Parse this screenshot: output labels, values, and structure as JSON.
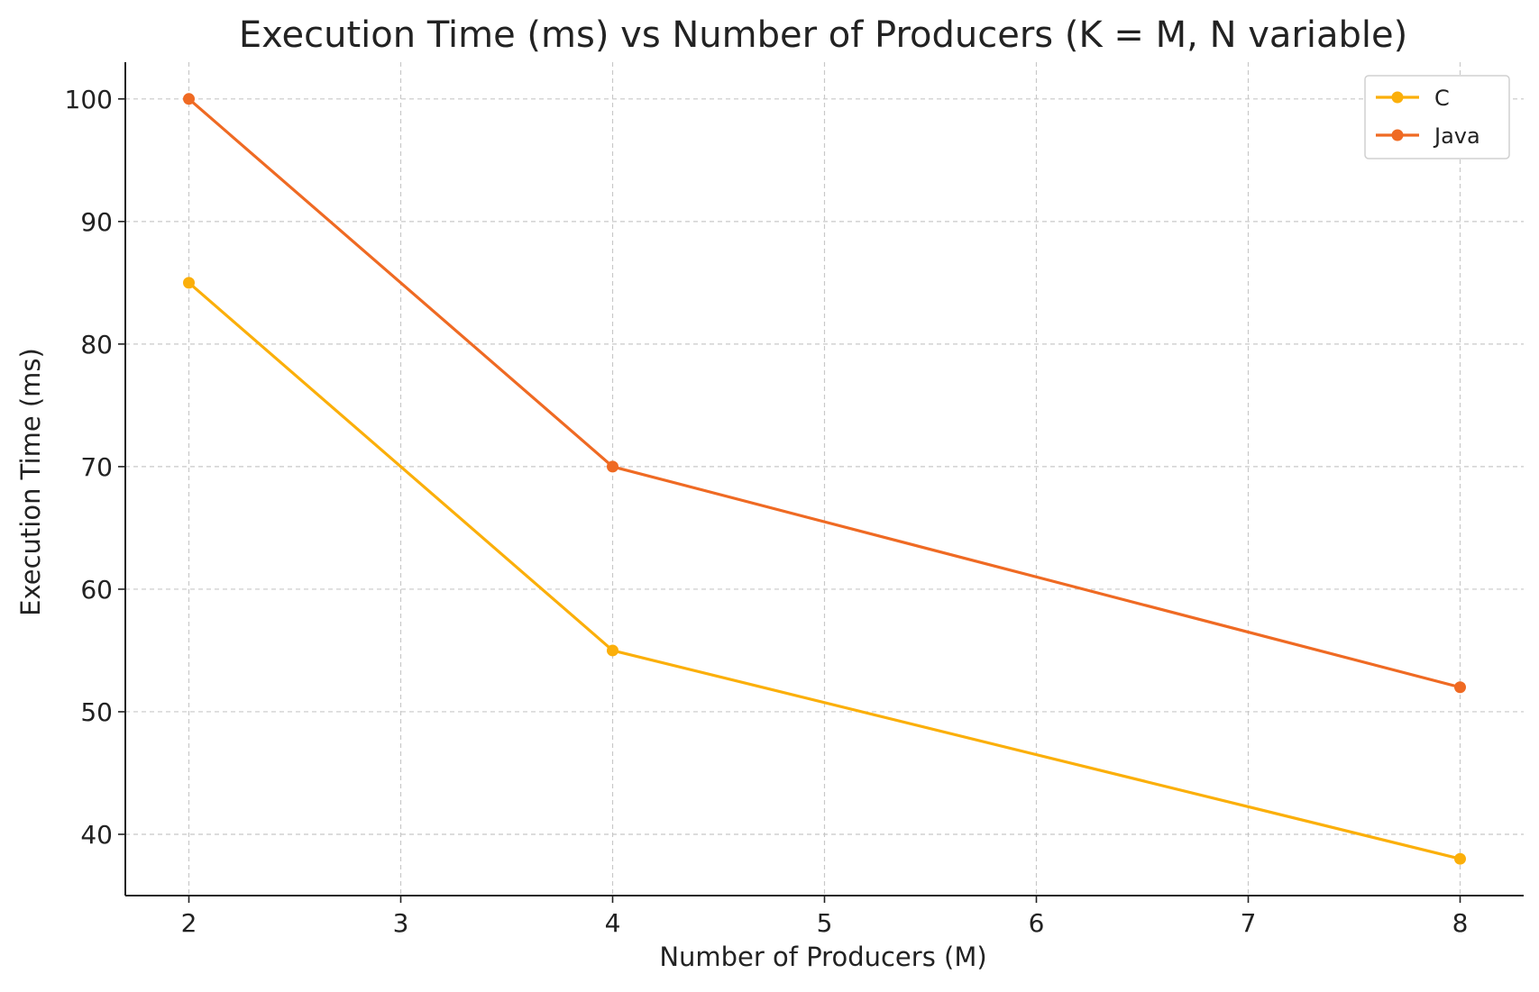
{
  "chart_data": {
    "type": "line",
    "title": "Execution Time (ms) vs Number of Producers (K = M, N variable)",
    "xlabel": "Number of Producers (M)",
    "ylabel": "Execution Time (ms)",
    "x": [
      2,
      4,
      8
    ],
    "xticks": [
      2,
      3,
      4,
      5,
      6,
      7,
      8
    ],
    "yticks": [
      40,
      50,
      60,
      70,
      80,
      90,
      100
    ],
    "xlim": [
      1.7,
      8.3
    ],
    "ylim": [
      35,
      103
    ],
    "grid": true,
    "legend_position": "top-right",
    "series": [
      {
        "name": "C",
        "values": [
          85,
          55,
          38
        ],
        "color": "#FBAF0A",
        "marker": "circle"
      },
      {
        "name": "Java",
        "values": [
          100,
          70,
          52
        ],
        "color": "#EF6A23",
        "marker": "circle"
      }
    ]
  }
}
